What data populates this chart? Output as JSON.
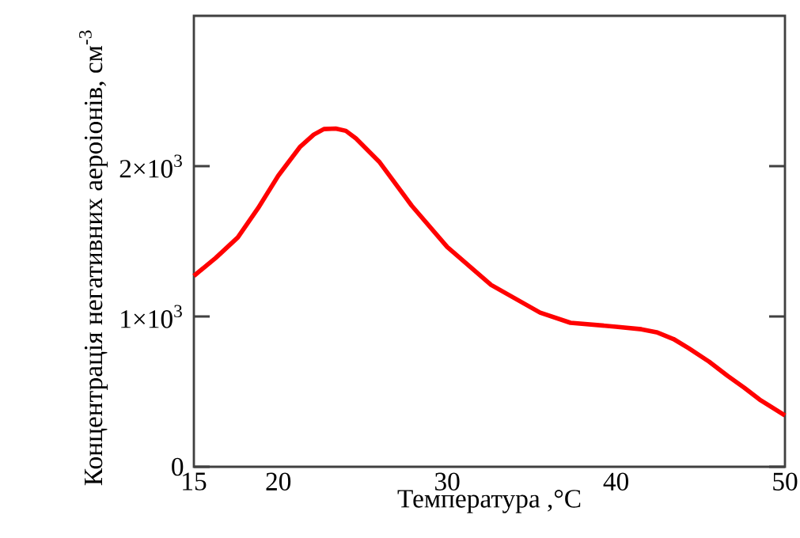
{
  "chart_data": {
    "type": "line",
    "xlabel": "Температура ,°C",
    "ylabel": "Концентрація негативних аероіонів, см$^{-3}$",
    "xlim": [
      15,
      50
    ],
    "ylim": [
      0,
      3000
    ],
    "xticks": [
      15,
      20,
      30,
      40,
      50
    ],
    "yticks": [
      0,
      {
        "value": 1000,
        "label": "1×10$^{3}$"
      },
      {
        "value": 2000,
        "label": "2×10$^{3}$"
      }
    ],
    "grid": false,
    "marker": "none",
    "line_style": "solid",
    "series": [
      {
        "color": "#ff0000",
        "x": [
          15,
          16.3,
          17.6,
          18.8,
          20,
          21.3,
          22.1,
          22.7,
          23.4,
          24.0,
          24.6,
          26,
          27.9,
          30,
          32.6,
          35.5,
          37.3,
          40,
          41.5,
          42.4,
          43.4,
          44.3,
          45.5,
          46.6,
          47.6,
          48.5,
          50
        ],
        "values": [
          1270,
          1390,
          1526,
          1720,
          1937,
          2130,
          2210,
          2247,
          2250,
          2235,
          2184,
          2026,
          1737,
          1463,
          1210,
          1026,
          958,
          932,
          915,
          895,
          850,
          789,
          700,
          605,
          525,
          447,
          342
        ]
      }
    ]
  }
}
